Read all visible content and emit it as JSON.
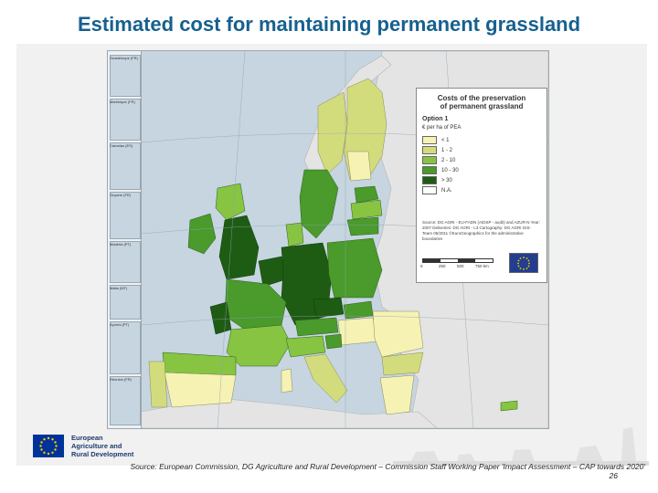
{
  "title": "Estimated cost for maintaining permanent grassland",
  "map": {
    "legend": {
      "title_line1": "Costs of the preservation",
      "title_line2": "of permanent grassland",
      "option": "Option 1",
      "unit": "€ per ha of PEA",
      "classes": [
        {
          "label": "< 1",
          "color": "#f6f2b4"
        },
        {
          "label": "1 - 2",
          "color": "#d2dc7c"
        },
        {
          "label": "2 - 10",
          "color": "#86c442"
        },
        {
          "label": "10 - 30",
          "color": "#4a9a2c"
        },
        {
          "label": "> 30",
          "color": "#1e5c14"
        },
        {
          "label": "N.A.",
          "color": "#ffffff"
        }
      ],
      "source_text": "Source: DG AGRI - EU-FADN (AIDSP - audit) and AZUR-N Year: 2007 Deliveries: DG AGRI - L3 Cartography: DG AGRI GIS-Team 05/2011 ©EuroGeographics for the administrative boundaries",
      "scale_labels": [
        "0",
        "250",
        "500",
        "750 km"
      ]
    },
    "inset_labels": [
      "Guadeloupe (FR)",
      "Martinique (FR)",
      "Canarias (ES)",
      "Guyane (FR)",
      "Madeira (PT)",
      "Malta (MT)",
      "Açores (PT)",
      "Réunion (FR)"
    ],
    "colors": {
      "sea": "#c6d5e0",
      "non_eu_land": "#e4e4e4"
    }
  },
  "footer": {
    "logo_line1": "European",
    "logo_line2": "Agriculture and",
    "logo_line3": "Rural Development",
    "source": "Source: European Commission, DG Agriculture and Rural Development – Commission Staff Working Paper 'Impact Assessment – CAP towards 2020'",
    "page": "26"
  }
}
